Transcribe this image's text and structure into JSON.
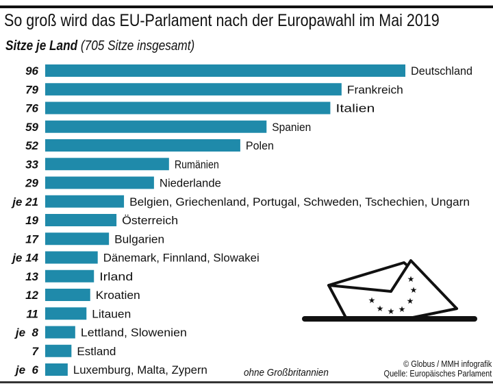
{
  "chart_data": {
    "type": "bar",
    "orientation": "horizontal",
    "title": "So groß wird das EU-Parlament nach der Europawahl im Mai 2019",
    "subtitle_bold": "Sitze je Land",
    "subtitle_rest": "(705 Sitze insgesamt)",
    "bar_color": "#1f8aaa",
    "categories": [
      "Deutschland",
      "Frankreich",
      "Italien",
      "Spanien",
      "Polen",
      "Rumänien",
      "Niederlande",
      "Belgien, Griechenland, Portugal, Schweden, Tschechien, Ungarn",
      "Österreich",
      "Bulgarien",
      "Dänemark, Finnland, Slowakei",
      "Irland",
      "Kroatien",
      "Litauen",
      "Lettland, Slowenien",
      "Estland",
      "Luxemburg, Malta, Zypern"
    ],
    "values": [
      96,
      79,
      76,
      59,
      52,
      33,
      29,
      21,
      19,
      17,
      14,
      13,
      12,
      11,
      8,
      7,
      6
    ],
    "value_labels": [
      "96",
      "79",
      "76",
      "59",
      "52",
      "33",
      "29",
      "je 21",
      "19",
      "17",
      "je 14",
      "13",
      "12",
      "11",
      "je  8",
      "7",
      "je  6"
    ],
    "xlim": [
      0,
      96
    ],
    "grid": false,
    "note": "ohne Großbritannien",
    "credit": "© Globus / MMH infografik",
    "source": "Quelle: Europäisches Parlament"
  }
}
